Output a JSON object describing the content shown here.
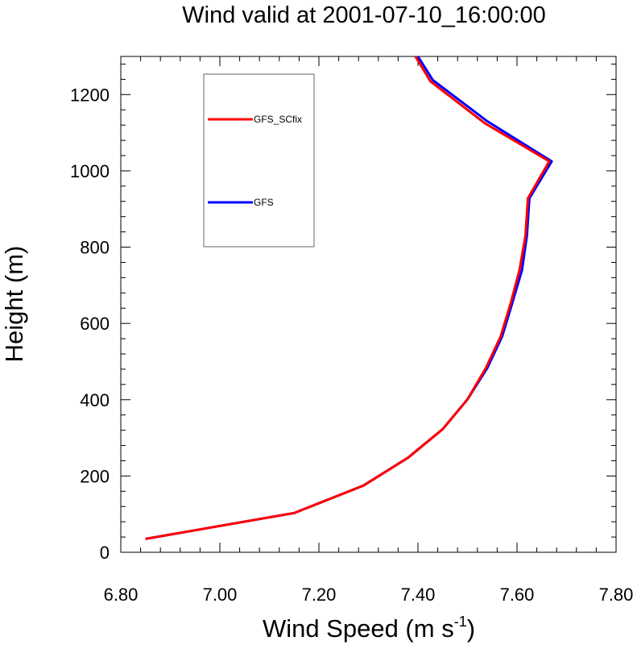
{
  "chart_data": {
    "type": "line",
    "title": "Wind valid at 2001-07-10_16:00:00",
    "xlabel": "Wind Speed (m s",
    "xlabel_sup": "-1",
    "xlabel_close": ")",
    "ylabel": "Height (m)",
    "xlim": [
      6.8,
      7.8
    ],
    "ylim": [
      0,
      1300
    ],
    "xticks": [
      "6.80",
      "7.00",
      "7.20",
      "7.40",
      "7.60",
      "7.80"
    ],
    "xtick_values": [
      6.8,
      7.0,
      7.2,
      7.4,
      7.6,
      7.8
    ],
    "yticks": [
      "0",
      "200",
      "400",
      "600",
      "800",
      "1000",
      "1200"
    ],
    "ytick_values": [
      0,
      200,
      400,
      600,
      800,
      1000,
      1200
    ],
    "legend_position": "top-left",
    "series": [
      {
        "name": "GFS",
        "color": "#0000ff",
        "points": [
          [
            6.85,
            35
          ],
          [
            7.15,
            103
          ],
          [
            7.29,
            175
          ],
          [
            7.38,
            248
          ],
          [
            7.45,
            323
          ],
          [
            7.5,
            401
          ],
          [
            7.54,
            483
          ],
          [
            7.57,
            566
          ],
          [
            7.59,
            652
          ],
          [
            7.61,
            740
          ],
          [
            7.62,
            830
          ],
          [
            7.625,
            928
          ],
          [
            7.67,
            1025
          ],
          [
            7.54,
            1130
          ],
          [
            7.43,
            1238
          ],
          [
            7.4,
            1300
          ]
        ]
      },
      {
        "name": "GFS_SCfix",
        "color": "#ff0000",
        "points": [
          [
            6.85,
            35
          ],
          [
            7.15,
            103
          ],
          [
            7.29,
            175
          ],
          [
            7.38,
            248
          ],
          [
            7.45,
            323
          ],
          [
            7.5,
            401
          ],
          [
            7.537,
            483
          ],
          [
            7.567,
            566
          ],
          [
            7.587,
            652
          ],
          [
            7.605,
            740
          ],
          [
            7.617,
            830
          ],
          [
            7.622,
            928
          ],
          [
            7.665,
            1025
          ],
          [
            7.535,
            1125
          ],
          [
            7.425,
            1235
          ],
          [
            7.395,
            1300
          ]
        ]
      }
    ],
    "legend": [
      {
        "label": "GFS_SCfix",
        "color": "#ff0000"
      },
      {
        "label": "GFS",
        "color": "#0000ff"
      }
    ]
  }
}
